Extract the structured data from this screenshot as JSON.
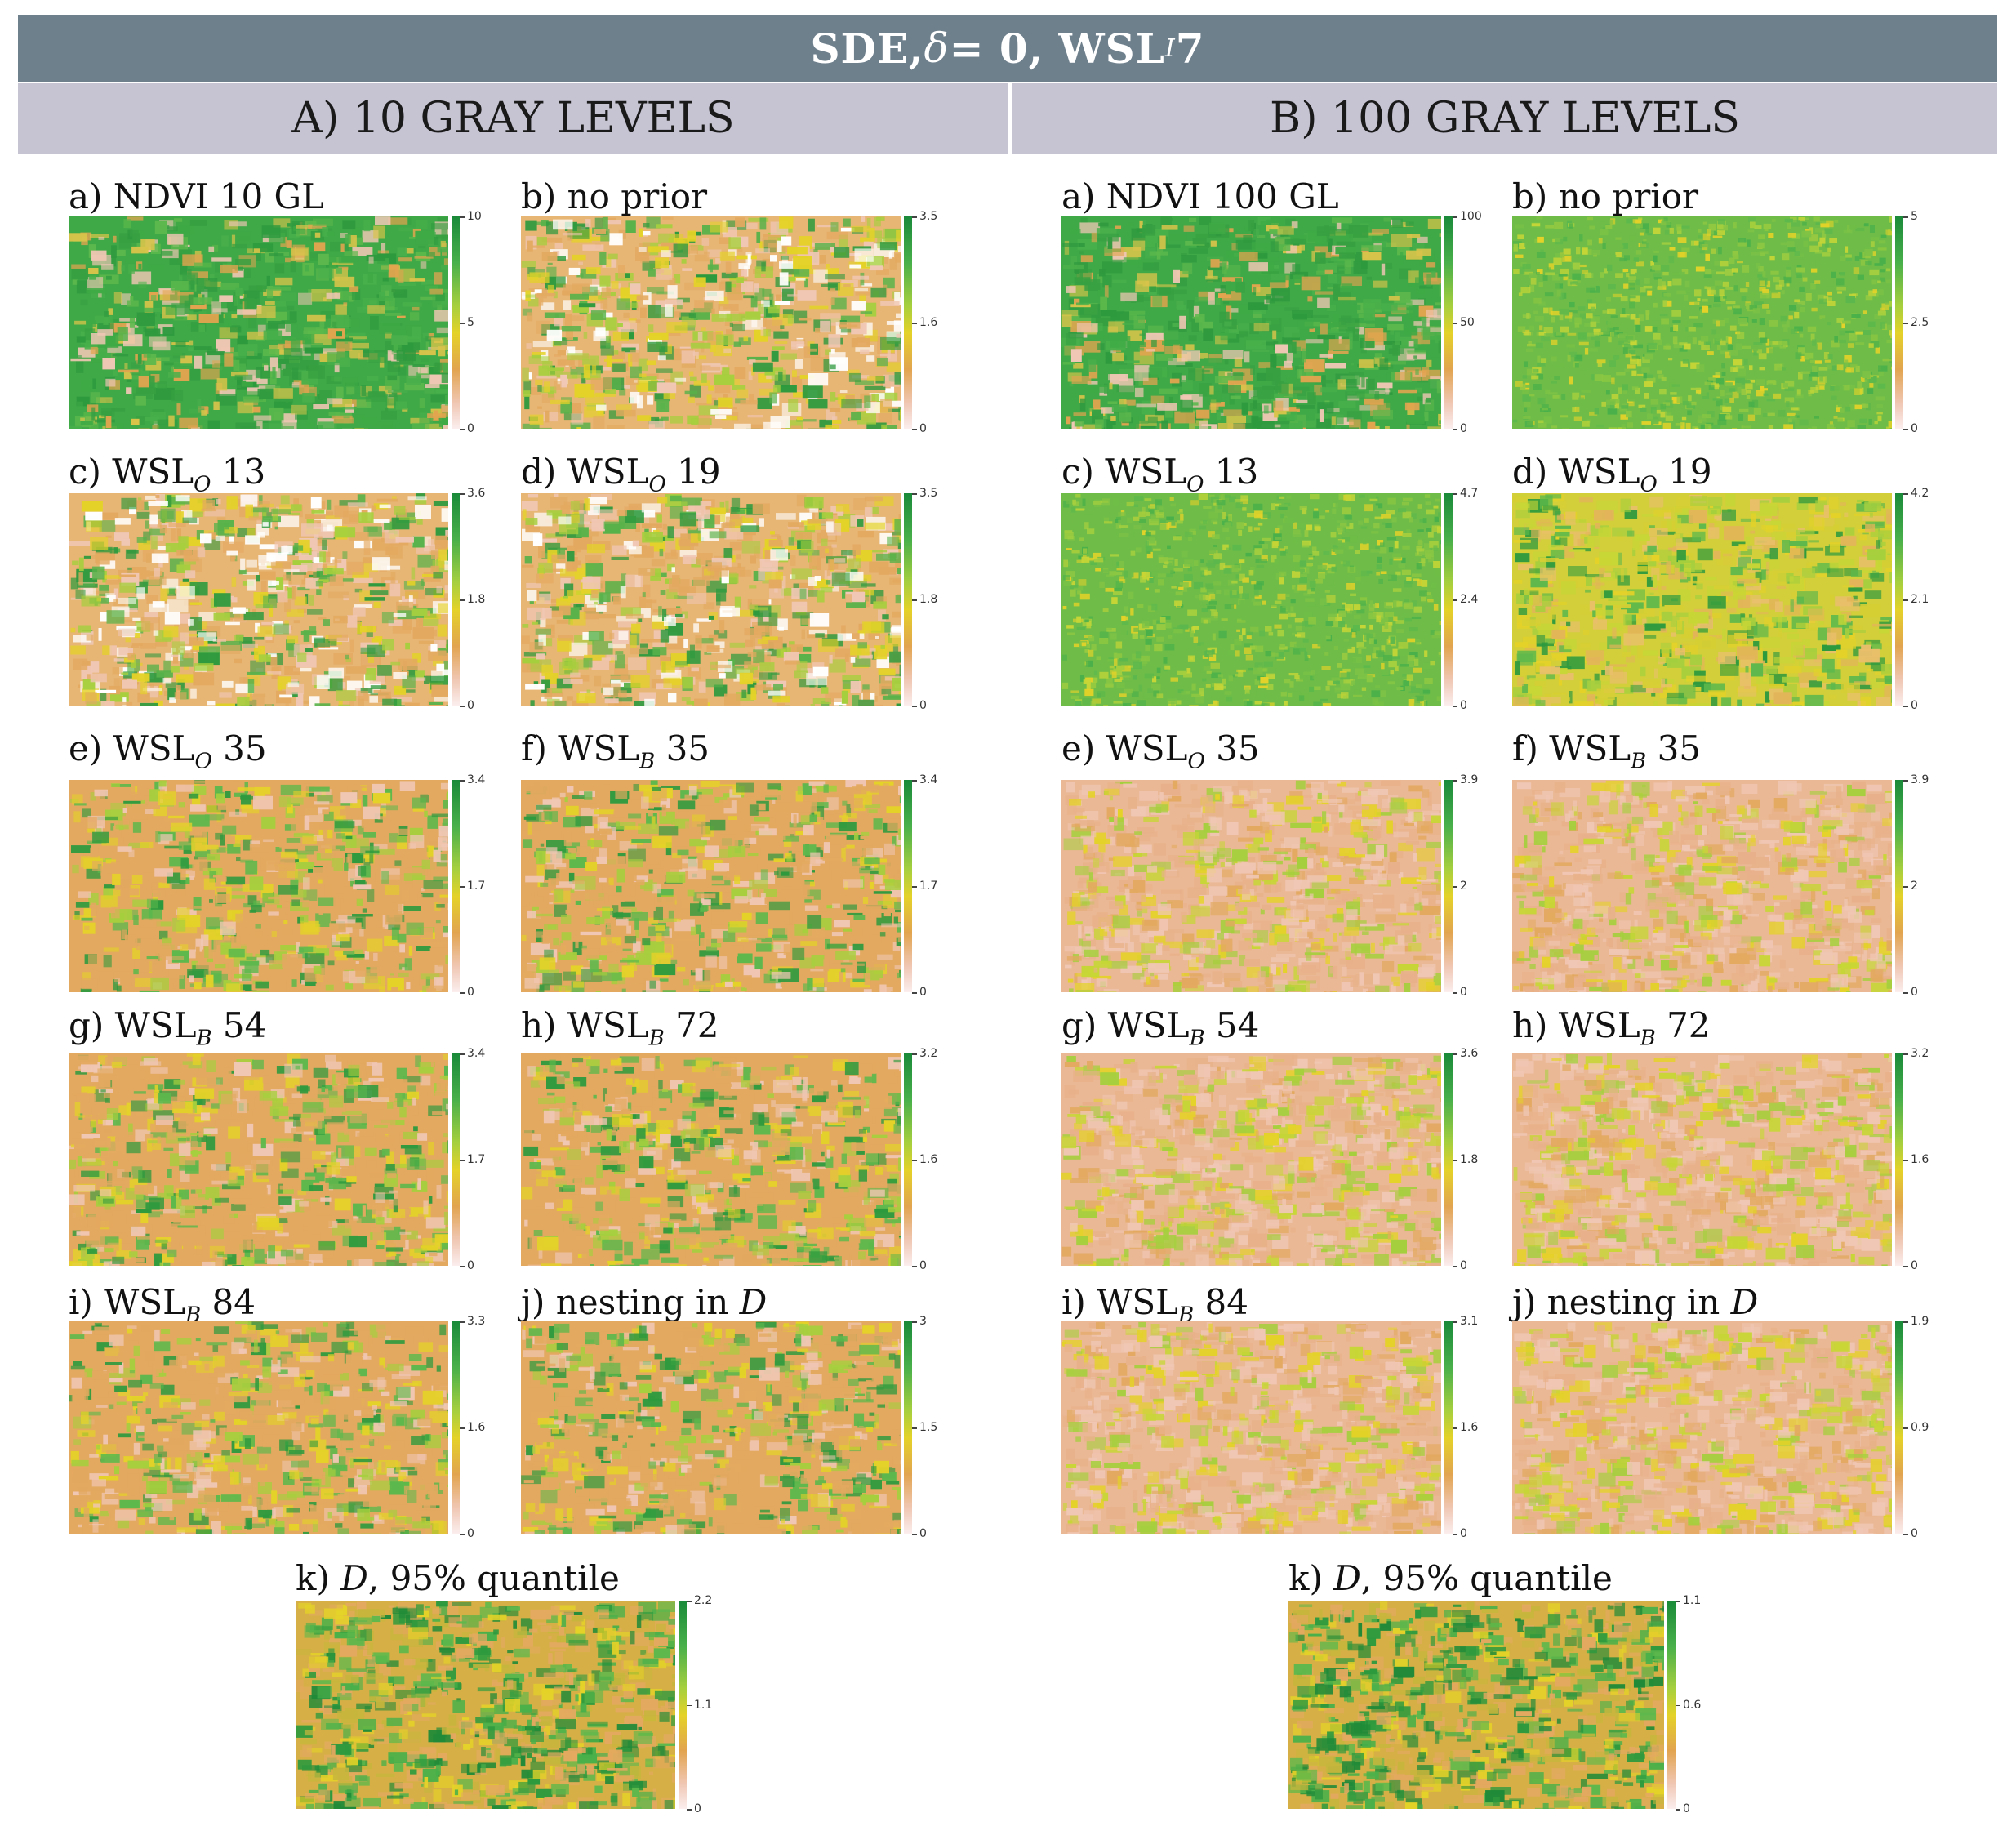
{
  "banner": {
    "pre": "SDE, ",
    "delta": "δ",
    "mid": " = 0, WSL",
    "sub": "I",
    "post": " 7"
  },
  "sections": [
    {
      "title": "A) 10 GRAY LEVELS"
    },
    {
      "title": "B) 100 GRAY LEVELS"
    }
  ],
  "panels": [
    {
      "id": "A-a",
      "base": "a) NDVI 10 GL",
      "sub": "",
      "num": "",
      "ticks": [
        "10",
        "5",
        "0"
      ],
      "pattern": "ndvi"
    },
    {
      "id": "A-b",
      "base": "b) no prior",
      "sub": "",
      "num": "",
      "ticks": [
        "3.5",
        "1.6",
        "0"
      ],
      "pattern": "mixed"
    },
    {
      "id": "A-c",
      "base": "c) WSL",
      "sub": "O",
      "num": " 13",
      "ticks": [
        "3.6",
        "1.8",
        "0"
      ],
      "pattern": "mixed"
    },
    {
      "id": "A-d",
      "base": "d) WSL",
      "sub": "O",
      "num": " 19",
      "ticks": [
        "3.5",
        "1.8",
        "0"
      ],
      "pattern": "mixed"
    },
    {
      "id": "A-e",
      "base": "e) WSL",
      "sub": "O",
      "num": " 35",
      "ticks": [
        "3.4",
        "1.7",
        "0"
      ],
      "pattern": "orange"
    },
    {
      "id": "A-f",
      "base": "f) WSL",
      "sub": "B",
      "num": " 35",
      "ticks": [
        "3.4",
        "1.7",
        "0"
      ],
      "pattern": "orange"
    },
    {
      "id": "A-g",
      "base": "g) WSL",
      "sub": "B",
      "num": " 54",
      "ticks": [
        "3.4",
        "1.7",
        "0"
      ],
      "pattern": "orange"
    },
    {
      "id": "A-h",
      "base": "h) WSL",
      "sub": "B",
      "num": " 72",
      "ticks": [
        "3.2",
        "1.6",
        "0"
      ],
      "pattern": "orange"
    },
    {
      "id": "A-i",
      "base": "i) WSL",
      "sub": "B",
      "num": " 84",
      "ticks": [
        "3.3",
        "1.6",
        "0"
      ],
      "pattern": "orange"
    },
    {
      "id": "A-j",
      "base": "j) nesting in ",
      "sub": "",
      "num": "",
      "cal": "D",
      "ticks": [
        "3",
        "1.5",
        "0"
      ],
      "pattern": "orange"
    },
    {
      "id": "A-k",
      "base": "k) ",
      "sub": "",
      "num": "",
      "cal": "D",
      "post": ", 95% quantile",
      "ticks": [
        "2.2",
        "1.1",
        "0"
      ],
      "pattern": "greenmix"
    },
    {
      "id": "B-a",
      "base": "a) NDVI 100 GL",
      "sub": "",
      "num": "",
      "ticks": [
        "100",
        "50",
        "0"
      ],
      "pattern": "ndvi"
    },
    {
      "id": "B-b",
      "base": "b) no prior",
      "sub": "",
      "num": "",
      "ticks": [
        "5",
        "2.5",
        "0"
      ],
      "pattern": "greenfine"
    },
    {
      "id": "B-c",
      "base": "c) WSL",
      "sub": "O",
      "num": " 13",
      "ticks": [
        "4.7",
        "2.4",
        "0"
      ],
      "pattern": "greenfine"
    },
    {
      "id": "B-d",
      "base": "d) WSL",
      "sub": "O",
      "num": " 19",
      "ticks": [
        "4.2",
        "2.1",
        "0"
      ],
      "pattern": "yellow"
    },
    {
      "id": "B-e",
      "base": "e) WSL",
      "sub": "O",
      "num": " 35",
      "ticks": [
        "3.9",
        "2",
        "0"
      ],
      "pattern": "pink"
    },
    {
      "id": "B-f",
      "base": "f) WSL",
      "sub": "B",
      "num": " 35",
      "ticks": [
        "3.9",
        "2",
        "0"
      ],
      "pattern": "pink"
    },
    {
      "id": "B-g",
      "base": "g) WSL",
      "sub": "B",
      "num": " 54",
      "ticks": [
        "3.6",
        "1.8",
        "0"
      ],
      "pattern": "pink"
    },
    {
      "id": "B-h",
      "base": "h) WSL",
      "sub": "B",
      "num": " 72",
      "ticks": [
        "3.2",
        "1.6",
        "0"
      ],
      "pattern": "pink"
    },
    {
      "id": "B-i",
      "base": "i) WSL",
      "sub": "B",
      "num": " 84",
      "ticks": [
        "3.1",
        "1.6",
        "0"
      ],
      "pattern": "pink"
    },
    {
      "id": "B-j",
      "base": "j) nesting in ",
      "sub": "",
      "num": "",
      "cal": "D",
      "ticks": [
        "1.9",
        "0.9",
        "0"
      ],
      "pattern": "pink"
    },
    {
      "id": "B-k",
      "base": "k) ",
      "sub": "",
      "num": "",
      "cal": "D",
      "post": ", 95% quantile",
      "ticks": [
        "1.1",
        "0.6",
        "0"
      ],
      "pattern": "greenmix"
    }
  ]
}
